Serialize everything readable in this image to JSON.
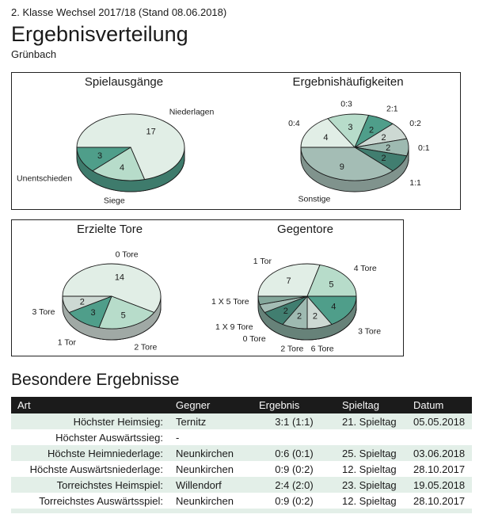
{
  "page": {
    "league_line": "2. Klasse Wechsel 2017/18 (Stand 08.06.2018)",
    "title": "Ergebnisverteilung",
    "team": "Grünbach",
    "section2_title": "Besondere Ergebnisse"
  },
  "palette": {
    "slice_colors": [
      "#e1eee6",
      "#b7dcca",
      "#4f9e8a",
      "#cdd9d3",
      "#9ebab1",
      "#417e70",
      "#a4bdb5",
      "#84a79b"
    ],
    "outline": "#1a1a1a",
    "label_color": "#1a1a1a",
    "stripe_color": "#e3efe8",
    "header_bg": "#1b1b1b"
  },
  "chart_data": [
    {
      "type": "pie",
      "id": "spielausgaenge",
      "box": 1,
      "title": "Spielausgänge",
      "labels": [
        "Niederlagen",
        "Siege",
        "Unentschieden"
      ],
      "values": [
        17,
        4,
        3
      ],
      "colors": [
        "#e1eee6",
        "#b7dcca",
        "#4f9e8a"
      ],
      "layout": {
        "style": "3d-pie",
        "start_angle_deg": 180,
        "direction": "clockwise",
        "value_labels": "inside",
        "category_labels": "outside"
      }
    },
    {
      "type": "pie",
      "id": "ergebnishaeufigkeiten",
      "box": 1,
      "title": "Ergebnishäufigkeiten",
      "labels": [
        "0:4",
        "0:3",
        "2:1",
        "0:2",
        "0:1",
        "1:1",
        "Sonstige"
      ],
      "values": [
        4,
        3,
        2,
        2,
        2,
        2,
        9
      ],
      "colors": [
        "#e1eee6",
        "#b7dcca",
        "#4f9e8a",
        "#cdd9d3",
        "#9ebab1",
        "#417e70",
        "#a4bdb5"
      ],
      "layout": {
        "style": "3d-pie",
        "start_angle_deg": 180,
        "direction": "clockwise",
        "value_labels": "inside",
        "category_labels": "outside"
      }
    },
    {
      "type": "pie",
      "id": "erzielte-tore",
      "box": 2,
      "title": "Erzielte Tore",
      "labels": [
        "0 Tore",
        "2 Tore",
        "1 Tor",
        "3 Tore"
      ],
      "values": [
        14,
        5,
        3,
        2
      ],
      "colors": [
        "#e1eee6",
        "#b7dcca",
        "#4f9e8a",
        "#cdd9d3"
      ],
      "layout": {
        "style": "3d-pie",
        "start_angle_deg": 180,
        "direction": "clockwise",
        "value_labels": "inside",
        "category_labels": "outside"
      }
    },
    {
      "type": "pie",
      "id": "gegentore",
      "box": 2,
      "title": "Gegentore",
      "labels": [
        "1 Tor",
        "4 Tore",
        "3 Tore",
        "6 Tore",
        "2 Tore",
        "0 Tore",
        "1 X 9 Tore",
        "1 X 5 Tore"
      ],
      "values": [
        7,
        5,
        4,
        2,
        2,
        2,
        1,
        1
      ],
      "colors": [
        "#e1eee6",
        "#b7dcca",
        "#4f9e8a",
        "#cdd9d3",
        "#9ebab1",
        "#417e70",
        "#a4bdb5",
        "#84a79b"
      ],
      "layout": {
        "style": "3d-pie",
        "start_angle_deg": 180,
        "direction": "clockwise",
        "value_labels": "inside",
        "category_labels": "outside"
      }
    }
  ],
  "table": {
    "columns": [
      "Art",
      "Gegner",
      "Ergebnis",
      "Spieltag",
      "Datum"
    ],
    "rows": [
      [
        "Höchster Heimsieg:",
        "Ternitz",
        "3:1 (1:1)",
        "21. Spieltag",
        "05.05.2018"
      ],
      [
        "Höchster Auswärtssieg:",
        "-",
        "",
        "",
        ""
      ],
      [
        "Höchste Heimniederlage:",
        "Neunkirchen",
        "0:6 (0:1)",
        "25. Spieltag",
        "03.06.2018"
      ],
      [
        "Höchste Auswärtsniederlage:",
        "Neunkirchen",
        "0:9 (0:2)",
        "12. Spieltag",
        "28.10.2017"
      ],
      [
        "Torreichstes Heimspiel:",
        "Willendorf",
        "2:4 (2:0)",
        "23. Spieltag",
        "19.05.2018"
      ],
      [
        "Torreichstes Auswärtsspiel:",
        "Neunkirchen",
        "0:9 (0:2)",
        "12. Spieltag",
        "28.10.2017"
      ]
    ]
  }
}
